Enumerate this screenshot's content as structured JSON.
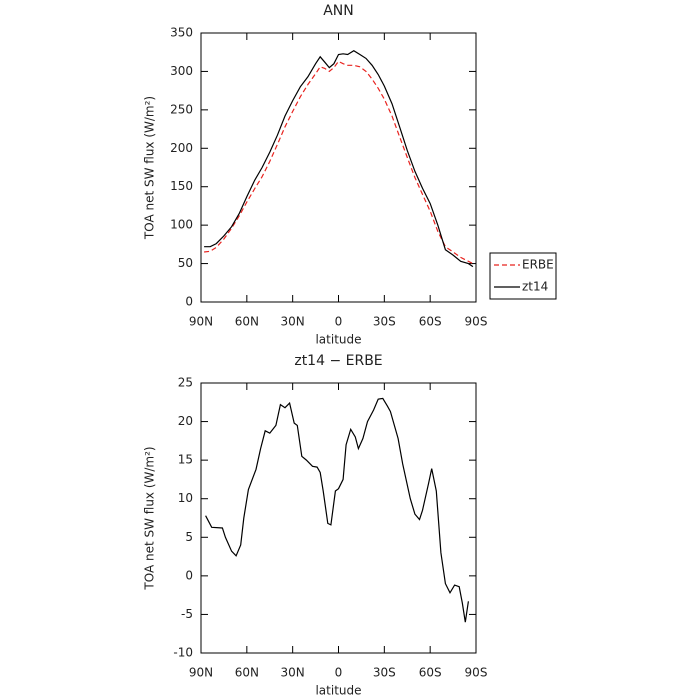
{
  "chart_data": [
    {
      "type": "line",
      "title": "ANN",
      "ylabel": "TOA net SW flux (W/m²)",
      "xlabel": "latitude",
      "xlim": [
        90,
        -90
      ],
      "xticks": [
        {
          "value": 90,
          "label": "90N"
        },
        {
          "value": 60,
          "label": "60N"
        },
        {
          "value": 30,
          "label": "30N"
        },
        0,
        {
          "value": -30,
          "label": "30S"
        },
        {
          "value": -60,
          "label": "60S"
        },
        {
          "value": -90,
          "label": "90S"
        }
      ],
      "ylim": [
        0,
        350
      ],
      "yticks": [
        0,
        50,
        100,
        150,
        200,
        250,
        300,
        350
      ],
      "legend": "right",
      "x": [
        88,
        84,
        80,
        75,
        70,
        65,
        60,
        55,
        50,
        45,
        40,
        35,
        30,
        25,
        20,
        15,
        12,
        9,
        6,
        3,
        0,
        -3,
        -6,
        -10,
        -14,
        -18,
        -22,
        -26,
        -30,
        -35,
        -40,
        -45,
        -50,
        -55,
        -60,
        -65,
        -70,
        -75,
        -80,
        -85,
        -88
      ],
      "series": [
        {
          "name": "ERBE",
          "color": "#e8231f",
          "dash": true,
          "values": [
            65,
            66,
            71,
            82,
            96,
            112,
            130,
            147,
            163,
            183,
            205,
            228,
            248,
            267,
            283,
            297,
            306,
            304,
            300,
            305,
            313,
            310,
            308,
            308,
            306,
            300,
            290,
            278,
            264,
            242,
            215,
            188,
            162,
            140,
            118,
            92,
            72,
            65,
            58,
            53,
            50
          ]
        },
        {
          "name": "zt14",
          "color": "#000000",
          "dash": false,
          "values": [
            72,
            72,
            76,
            86,
            98,
            115,
            137,
            158,
            175,
            195,
            217,
            242,
            262,
            280,
            293,
            310,
            319,
            312,
            305,
            310,
            322,
            323,
            322,
            327,
            322,
            317,
            308,
            296,
            281,
            258,
            228,
            197,
            170,
            148,
            128,
            100,
            68,
            61,
            53,
            50,
            46
          ]
        }
      ]
    },
    {
      "type": "line",
      "title": "zt14 − ERBE",
      "ylabel": "TOA net SW flux (W/m²)",
      "xlabel": "latitude",
      "xlim": [
        90,
        -90
      ],
      "xticks": [
        {
          "value": 90,
          "label": "90N"
        },
        {
          "value": 60,
          "label": "60N"
        },
        {
          "value": 30,
          "label": "30N"
        },
        0,
        {
          "value": -30,
          "label": "30S"
        },
        {
          "value": -60,
          "label": "60S"
        },
        {
          "value": -90,
          "label": "90S"
        }
      ],
      "ylim": [
        -10,
        25
      ],
      "yticks": [
        -10,
        -5,
        0,
        5,
        10,
        15,
        20,
        25
      ],
      "color": "#000000",
      "x": [
        87,
        83,
        76,
        74,
        70,
        67,
        64,
        62,
        59,
        54,
        51,
        48,
        45,
        41,
        38,
        35,
        32,
        29,
        27,
        24,
        21,
        17,
        14,
        12,
        10,
        7,
        5,
        2,
        0,
        -3,
        -5,
        -8,
        -11,
        -13,
        -16,
        -19,
        -23,
        -26,
        -29,
        -32,
        -34,
        -39,
        -42,
        -47,
        -50,
        -53,
        -55,
        -59,
        -61,
        -64,
        -67,
        -70,
        -73,
        -76,
        -79,
        -81,
        -83,
        -85
      ],
      "values": [
        7.8,
        6.3,
        6.2,
        5,
        3.2,
        2.6,
        4,
        7.5,
        11.2,
        13.8,
        16.5,
        18.8,
        18.5,
        19.5,
        22.2,
        21.8,
        22.4,
        19.8,
        19.5,
        15.5,
        15,
        14.2,
        14.1,
        13.4,
        11,
        6.8,
        6.6,
        11,
        11.3,
        12.5,
        17,
        19,
        18,
        16.5,
        17.8,
        20,
        21.5,
        22.9,
        23,
        22,
        21.3,
        17.8,
        14.5,
        10,
        8,
        7.3,
        8.5,
        12,
        13.9,
        11,
        3,
        -1,
        -2.2,
        -1.2,
        -1.4,
        -3.5,
        -6,
        -3.3
      ]
    }
  ]
}
